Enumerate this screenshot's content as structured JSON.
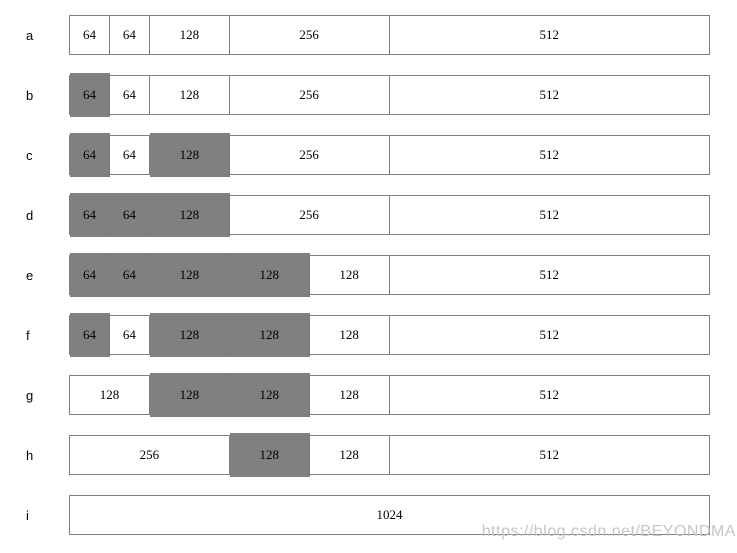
{
  "colors": {
    "allocated_fill": "#808080",
    "free_fill": "#ffffff",
    "border": "#7f7f7f",
    "text": "#000000",
    "watermark_text": "#c6c6c6"
  },
  "watermark": {
    "text": "https://blog.csdn.net/BEYONDMA"
  },
  "diagram": {
    "total_units": 1024,
    "rows": [
      {
        "label": "a",
        "cells": [
          {
            "text": "64",
            "size": 64,
            "allocated": false
          },
          {
            "text": "64",
            "size": 64,
            "allocated": false
          },
          {
            "text": "128",
            "size": 128,
            "allocated": false
          },
          {
            "text": "256",
            "size": 256,
            "allocated": false
          },
          {
            "text": "512",
            "size": 512,
            "allocated": false
          }
        ]
      },
      {
        "label": "b",
        "cells": [
          {
            "text": "64",
            "size": 64,
            "allocated": true
          },
          {
            "text": "64",
            "size": 64,
            "allocated": false
          },
          {
            "text": "128",
            "size": 128,
            "allocated": false
          },
          {
            "text": "256",
            "size": 256,
            "allocated": false
          },
          {
            "text": "512",
            "size": 512,
            "allocated": false
          }
        ]
      },
      {
        "label": "c",
        "cells": [
          {
            "text": "64",
            "size": 64,
            "allocated": true
          },
          {
            "text": "64",
            "size": 64,
            "allocated": false
          },
          {
            "text": "128",
            "size": 128,
            "allocated": true
          },
          {
            "text": "256",
            "size": 256,
            "allocated": false
          },
          {
            "text": "512",
            "size": 512,
            "allocated": false
          }
        ]
      },
      {
        "label": "d",
        "cells": [
          {
            "text": "64",
            "size": 64,
            "allocated": true
          },
          {
            "text": "64",
            "size": 64,
            "allocated": true
          },
          {
            "text": "128",
            "size": 128,
            "allocated": true
          },
          {
            "text": "256",
            "size": 256,
            "allocated": false
          },
          {
            "text": "512",
            "size": 512,
            "allocated": false
          }
        ]
      },
      {
        "label": "e",
        "cells": [
          {
            "text": "64",
            "size": 64,
            "allocated": true
          },
          {
            "text": "64",
            "size": 64,
            "allocated": true
          },
          {
            "text": "128",
            "size": 128,
            "allocated": true
          },
          {
            "text": "128",
            "size": 128,
            "allocated": true
          },
          {
            "text": "128",
            "size": 128,
            "allocated": false
          },
          {
            "text": "512",
            "size": 512,
            "allocated": false
          }
        ]
      },
      {
        "label": "f",
        "cells": [
          {
            "text": "64",
            "size": 64,
            "allocated": true
          },
          {
            "text": "64",
            "size": 64,
            "allocated": false
          },
          {
            "text": "128",
            "size": 128,
            "allocated": true
          },
          {
            "text": "128",
            "size": 128,
            "allocated": true
          },
          {
            "text": "128",
            "size": 128,
            "allocated": false
          },
          {
            "text": "512",
            "size": 512,
            "allocated": false
          }
        ]
      },
      {
        "label": "g",
        "cells": [
          {
            "text": "128",
            "size": 128,
            "allocated": false
          },
          {
            "text": "128",
            "size": 128,
            "allocated": true
          },
          {
            "text": "128",
            "size": 128,
            "allocated": true
          },
          {
            "text": "128",
            "size": 128,
            "allocated": false
          },
          {
            "text": "512",
            "size": 512,
            "allocated": false
          }
        ]
      },
      {
        "label": "h",
        "cells": [
          {
            "text": "256",
            "size": 256,
            "allocated": false
          },
          {
            "text": "128",
            "size": 128,
            "allocated": true
          },
          {
            "text": "128",
            "size": 128,
            "allocated": false
          },
          {
            "text": "512",
            "size": 512,
            "allocated": false
          }
        ]
      },
      {
        "label": "i",
        "cells": [
          {
            "text": "1024",
            "size": 1024,
            "allocated": false
          }
        ]
      }
    ]
  }
}
